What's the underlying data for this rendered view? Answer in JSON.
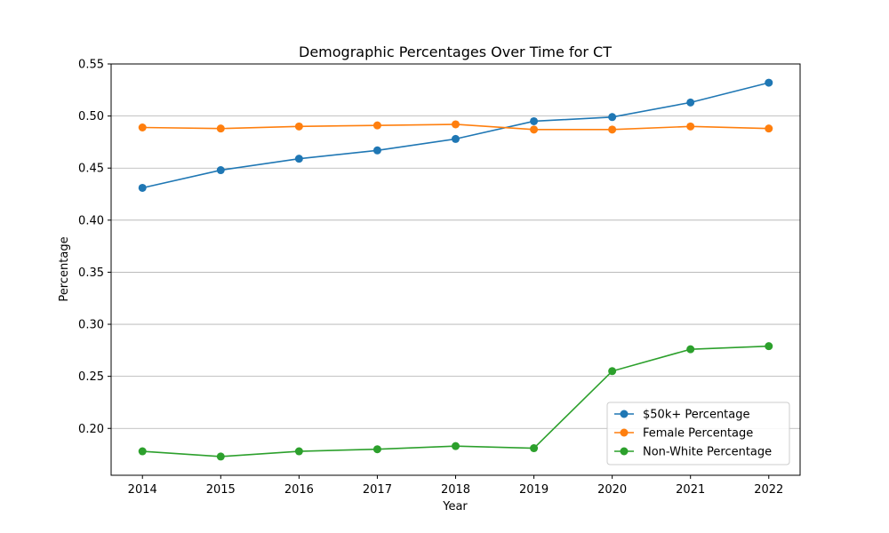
{
  "chart_data": {
    "type": "line",
    "title": "Demographic Percentages Over Time for CT",
    "xlabel": "Year",
    "ylabel": "Percentage",
    "x": [
      2014,
      2015,
      2016,
      2017,
      2018,
      2019,
      2020,
      2021,
      2022
    ],
    "ylim": [
      0.155,
      0.55
    ],
    "yticks": [
      0.2,
      0.25,
      0.3,
      0.35,
      0.4,
      0.45,
      0.5,
      0.55
    ],
    "ytick_labels": [
      "0.20",
      "0.25",
      "0.30",
      "0.35",
      "0.40",
      "0.45",
      "0.50",
      "0.55"
    ],
    "grid": "y-major",
    "legend_placement": "lower-right",
    "series": [
      {
        "name": "$50k+ Percentage",
        "color": "#1f77b4",
        "values": [
          0.431,
          0.448,
          0.459,
          0.467,
          0.478,
          0.495,
          0.499,
          0.513,
          0.532
        ]
      },
      {
        "name": "Female Percentage",
        "color": "#ff7f0e",
        "values": [
          0.489,
          0.488,
          0.49,
          0.491,
          0.492,
          0.487,
          0.487,
          0.49,
          0.488
        ]
      },
      {
        "name": "Non-White Percentage",
        "color": "#2ca02c",
        "values": [
          0.178,
          0.173,
          0.178,
          0.18,
          0.183,
          0.181,
          0.255,
          0.276,
          0.279
        ]
      }
    ]
  }
}
